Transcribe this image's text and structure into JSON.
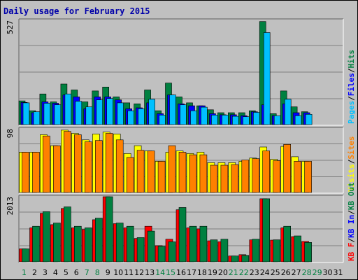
{
  "chart_data": {
    "title": "Daily usage for February 2015",
    "type": "bar",
    "days": [
      "1",
      "2",
      "3",
      "4",
      "5",
      "6",
      "7",
      "8",
      "9",
      "10",
      "11",
      "12",
      "13",
      "14",
      "15",
      "16",
      "17",
      "18",
      "19",
      "20",
      "21",
      "22",
      "23",
      "24",
      "25",
      "26",
      "27",
      "28",
      "29",
      "30",
      "31"
    ],
    "weekend_days": [
      "1",
      "7",
      "8",
      "14",
      "15",
      "21",
      "22",
      "28",
      "29"
    ],
    "panels": [
      {
        "id": "pages-files-hits",
        "y_tick_label": "527",
        "ymax": 527,
        "legend": [
          {
            "text": "Pages",
            "color": "#00c0ff"
          },
          {
            "text": "/",
            "color": "#000000"
          },
          {
            "text": "Files",
            "color": "#0000ff"
          },
          {
            "text": "/",
            "color": "#000000"
          },
          {
            "text": "Hits",
            "color": "#008040"
          }
        ],
        "series": [
          {
            "name": "Hits",
            "color": "#008040",
            "values": [
              120,
              70,
              155,
              115,
              205,
              175,
              115,
              170,
              190,
              140,
              110,
              105,
              175,
              70,
              210,
              140,
              110,
              95,
              75,
              60,
              60,
              60,
              70,
              521,
              55,
              170,
              90,
              65,
              0,
              0,
              0
            ]
          },
          {
            "name": "Files",
            "color": "#0000ff",
            "values": [
              112,
              60,
              115,
              108,
              150,
              140,
              80,
              140,
              140,
              125,
              80,
              85,
              110,
              55,
              150,
              105,
              95,
              95,
              55,
              50,
              50,
              45,
              65,
              100,
              45,
              105,
              60,
              60,
              0,
              0,
              0
            ]
          },
          {
            "name": "Pages",
            "color": "#00c0ff",
            "values": [
              110,
              65,
              108,
              100,
              155,
              118,
              90,
              125,
              132,
              110,
              70,
              80,
              128,
              48,
              150,
              100,
              70,
              88,
              48,
              48,
              42,
              40,
              62,
              465,
              45,
              128,
              45,
              52,
              0,
              0,
              0
            ]
          }
        ]
      },
      {
        "id": "visits-sites",
        "y_tick_label": "98",
        "ymax": 98,
        "legend": [
          {
            "text": "Visits",
            "color": "#ffff00"
          },
          {
            "text": "/",
            "color": "#000000"
          },
          {
            "text": "Sites",
            "color": "#ff8000"
          }
        ],
        "series": [
          {
            "name": "Visits",
            "color": "#ffff00",
            "values": [
              62,
              62,
              89,
              72,
              96,
              91,
              81,
              90,
              93,
              90,
              60,
              72,
              64,
              48,
              62,
              64,
              60,
              62,
              46,
              46,
              46,
              48,
              53,
              70,
              51,
              71,
              55,
              48,
              0,
              0,
              0
            ]
          },
          {
            "name": "Sites",
            "color": "#ff8000",
            "values": [
              62,
              62,
              87,
              72,
              94,
              89,
              78,
              80,
              91,
              81,
              54,
              65,
              64,
              48,
              72,
              62,
              58,
              58,
              42,
              42,
              43,
              50,
              52,
              64,
              49,
              74,
              48,
              48,
              0,
              0,
              0
            ]
          }
        ]
      },
      {
        "id": "kbf-kbin-kbout",
        "y_tick_label": "2013",
        "ymax": 2013,
        "legend": [
          {
            "text": "KB F",
            "color": "#ff0000"
          },
          {
            "text": "/",
            "color": "#000000"
          },
          {
            "text": "KB In",
            "color": "#0000ff"
          },
          {
            "text": "/",
            "color": "#000000"
          },
          {
            "text": "KB Out",
            "color": "#008040"
          }
        ],
        "series": [
          {
            "name": "KB F",
            "color": "#ff0000",
            "values": [
              400,
              1050,
              1500,
              1150,
              1650,
              1050,
              1000,
              1300,
              2013,
              1180,
              1050,
              720,
              1100,
              500,
              700,
              1610,
              1050,
              1020,
              650,
              620,
              180,
              220,
              680,
              1950,
              670,
              1050,
              780,
              630,
              0,
              0,
              0
            ]
          },
          {
            "name": "KB Out",
            "color": "#008040",
            "values": [
              400,
              1100,
              1550,
              1200,
              1700,
              1100,
              1050,
              1350,
              2013,
              1200,
              1100,
              750,
              950,
              480,
              620,
              1680,
              1100,
              1100,
              680,
              700,
              180,
              200,
              700,
              1950,
              680,
              1100,
              800,
              600,
              0,
              0,
              0
            ]
          }
        ]
      }
    ]
  }
}
